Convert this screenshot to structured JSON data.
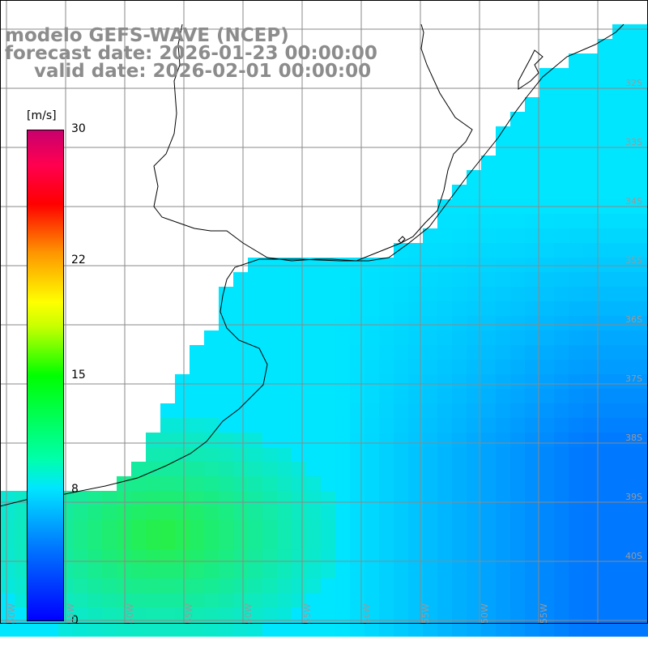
{
  "title": {
    "line1": "modelo GEFS-WAVE (NCEP)",
    "line2": "forecast date: 2026-01-23 00:00:00",
    "line3": "valid date: 2026-02-01 00:00:00"
  },
  "colorbar": {
    "unit": "[m/s]",
    "ticks": [
      {
        "label": "30",
        "value": 30
      },
      {
        "label": "22",
        "value": 22
      },
      {
        "label": "15",
        "value": 15
      },
      {
        "label": "8",
        "value": 8
      },
      {
        "label": "0",
        "value": 0
      }
    ],
    "min": 0,
    "max": 30
  },
  "map": {
    "lon_labels": [
      "50W",
      "55W",
      "50W",
      "55W",
      "50W",
      "55W",
      "50W",
      "55W",
      "50W",
      "55W"
    ],
    "lat_labels": [
      "32S",
      "33S",
      "34S",
      "35S",
      "36S",
      "37S",
      "38S",
      "39S",
      "40S"
    ],
    "ocean_low_color": "#1e8cff",
    "ocean_mid_color": "#00e6ff",
    "ocean_high_color": "#2ee85a",
    "land_color": "#ffffff",
    "grid_color": "#8a8a8a",
    "arrow_color": "#ffffff"
  }
}
